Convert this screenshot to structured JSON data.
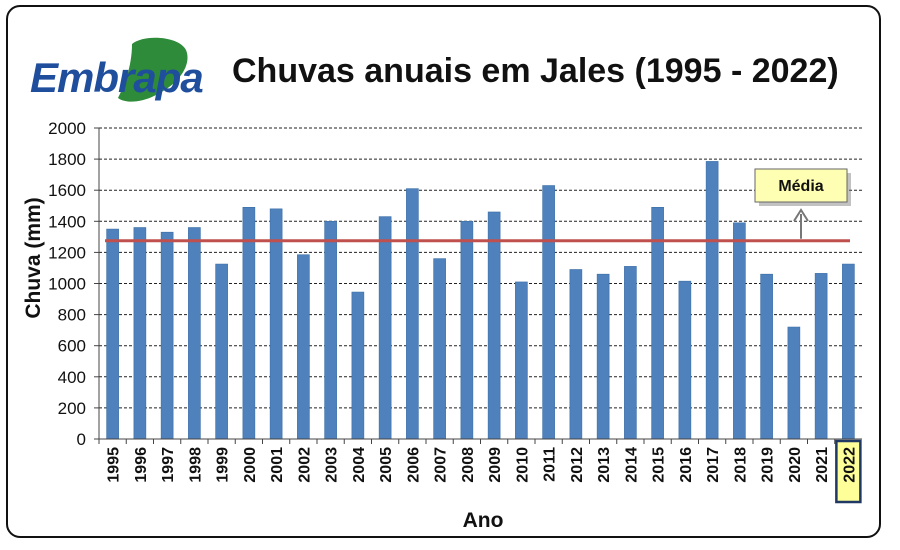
{
  "brand": {
    "logo_text": "Embrapa"
  },
  "chart_data": {
    "type": "bar",
    "title": "Chuvas anuais em Jales (1995 - 2022)",
    "xlabel": "Ano",
    "ylabel": "Chuva (mm)",
    "ylim": [
      0,
      2000
    ],
    "yticks": [
      0,
      200,
      400,
      600,
      800,
      1000,
      1200,
      1400,
      1600,
      1800,
      2000
    ],
    "categories": [
      "1995",
      "1996",
      "1997",
      "1998",
      "1999",
      "2000",
      "2001",
      "2002",
      "2003",
      "2004",
      "2005",
      "2006",
      "2007",
      "2008",
      "2009",
      "2010",
      "2011",
      "2012",
      "2013",
      "2014",
      "2015",
      "2016",
      "2017",
      "2018",
      "2019",
      "2020",
      "2021",
      "2022"
    ],
    "values": [
      1350,
      1360,
      1330,
      1360,
      1125,
      1490,
      1480,
      1185,
      1400,
      945,
      1430,
      1610,
      1160,
      1400,
      1460,
      1010,
      1630,
      1090,
      1060,
      1110,
      1490,
      1015,
      1785,
      1390,
      1060,
      720,
      1065,
      1125
    ],
    "mean_line": {
      "label": "Média",
      "value": 1275,
      "color": "#c0504d"
    },
    "highlighted_category": "2022",
    "grid": true,
    "colors": {
      "bar": "#4f81bd",
      "bar_edge": "#3a6ea5",
      "highlight_fill": "#ffff99",
      "highlight_border": "#1f3864"
    }
  }
}
